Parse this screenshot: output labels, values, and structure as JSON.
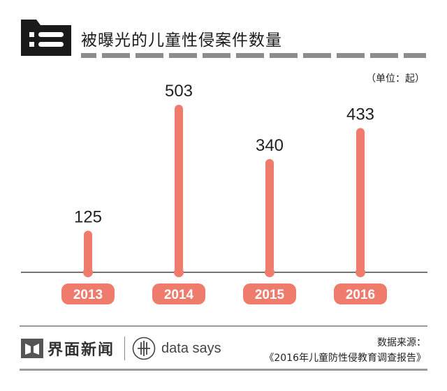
{
  "header": {
    "title": "被曝光的儿童性侵案件数量",
    "unit": "（单位：起）"
  },
  "colors": {
    "bar": "#ee7b6c",
    "dashes": "#8c8c8c",
    "axis": "#222222",
    "label_text": "#ffffff"
  },
  "chart_data": {
    "type": "bar",
    "categories": [
      "2013",
      "2014",
      "2015",
      "2016"
    ],
    "values": [
      125,
      503,
      340,
      433
    ],
    "title": "被曝光的儿童性侵案件数量",
    "xlabel": "",
    "ylabel": "",
    "unit": "（单位：起）",
    "ylim": [
      0,
      503
    ],
    "grid": false,
    "legend": "none"
  },
  "footer": {
    "brand": "界面新闻",
    "datasays": "data says",
    "source_label": "数据来源：",
    "source": "《2016年儿童防性侵教育调查报告》"
  }
}
